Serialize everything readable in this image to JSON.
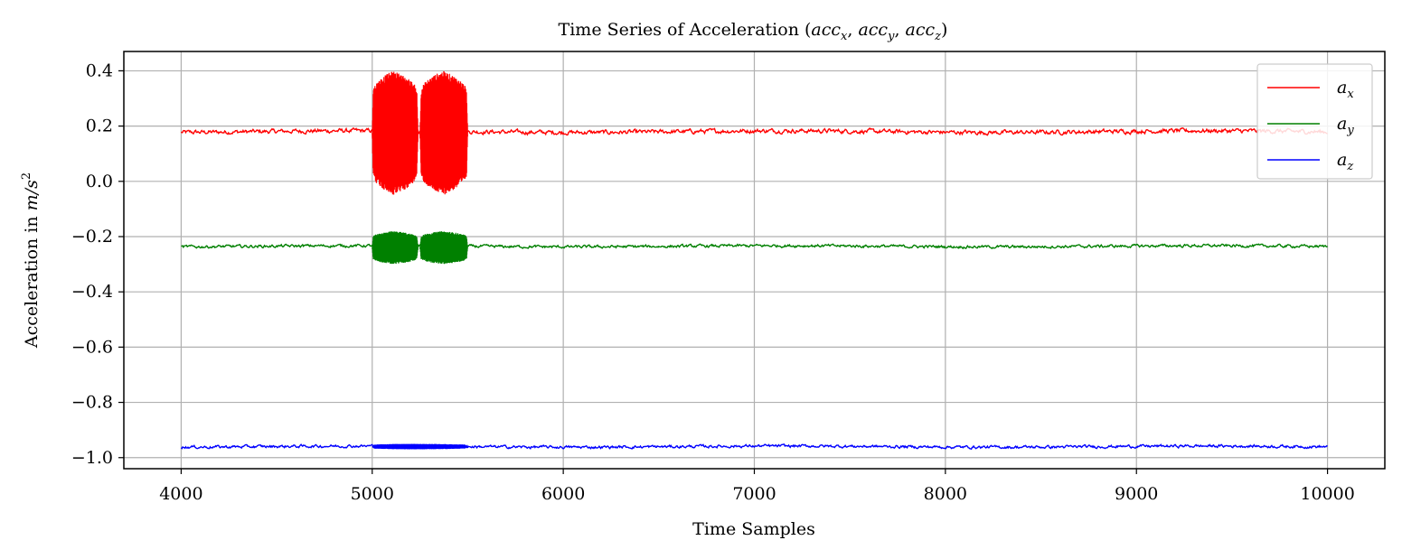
{
  "chart_data": {
    "type": "line",
    "title": "Time Series of Acceleration (acc_x, acc_y, acc_z)",
    "title_parts": {
      "prefix": "Time Series of Acceleration ",
      "x": "acc",
      "y": "acc",
      "z": "acc"
    },
    "xlabel": "Time Samples",
    "ylabel": "Acceleration in m/s²",
    "ylabel_parts": {
      "prefix": "Acceleration in ",
      "unit": "m/s",
      "exp": "2"
    },
    "xlim": [
      3700,
      10300
    ],
    "ylim": [
      -1.04,
      0.47
    ],
    "x_ticks": [
      4000,
      5000,
      6000,
      7000,
      8000,
      9000,
      10000
    ],
    "x_tick_labels": [
      "4000",
      "5000",
      "6000",
      "7000",
      "8000",
      "9000",
      "10000"
    ],
    "y_ticks": [
      0.4,
      0.2,
      0.0,
      -0.2,
      -0.4,
      -0.6,
      -0.8,
      -1.0
    ],
    "y_tick_labels": [
      "0.4",
      "0.2",
      "0.0",
      "−0.2",
      "−0.4",
      "−0.6",
      "−0.8",
      "−1.0"
    ],
    "grid": true,
    "legend_position": "top-right",
    "x_range": [
      4000,
      10000
    ],
    "series": [
      {
        "name": "a_x",
        "legend_base": "a",
        "legend_sub": "x",
        "color": "#ff0000",
        "baseline": 0.18,
        "noise": 0.006,
        "bursts": [
          {
            "x_start": 5000,
            "x_end": 5240,
            "x_peak": 5110,
            "min": -0.05,
            "max": 0.4
          },
          {
            "x_start": 5250,
            "x_end": 5500,
            "x_peak": 5370,
            "min": -0.05,
            "max": 0.4
          }
        ]
      },
      {
        "name": "a_y",
        "legend_base": "a",
        "legend_sub": "y",
        "color": "#008000",
        "baseline": -0.235,
        "noise": 0.004,
        "bursts": [
          {
            "x_start": 5000,
            "x_end": 5240,
            "x_peak": 5110,
            "min": -0.3,
            "max": -0.18
          },
          {
            "x_start": 5250,
            "x_end": 5500,
            "x_peak": 5370,
            "min": -0.3,
            "max": -0.18
          }
        ]
      },
      {
        "name": "a_z",
        "legend_base": "a",
        "legend_sub": "z",
        "color": "#0000ff",
        "baseline": -0.96,
        "noise": 0.004,
        "bursts": [
          {
            "x_start": 5000,
            "x_end": 5500,
            "x_peak": 5200,
            "min": -0.97,
            "max": -0.95
          }
        ]
      }
    ]
  }
}
